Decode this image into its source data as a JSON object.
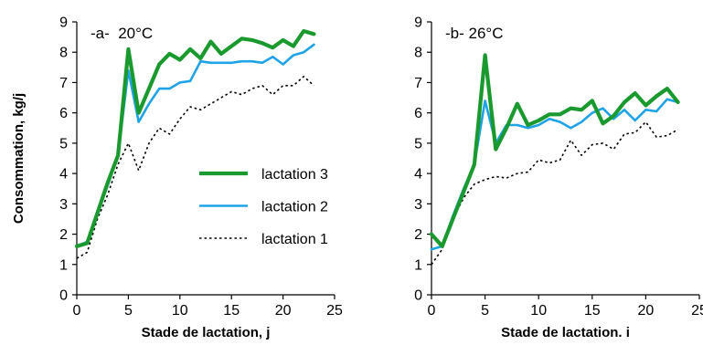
{
  "colors": {
    "lactation_3": "#1a9a2e",
    "lactation_2": "#1fa3e6",
    "lactation_1": "#000000",
    "axis": "#000000"
  },
  "chart_data": [
    {
      "type": "line",
      "panel_label": "-a-  20°C",
      "xlabel": "Stade de lactation, j",
      "ylabel": "Consommation, kg/j",
      "xlim": [
        0,
        25
      ],
      "ylim": [
        0,
        9
      ],
      "xticks": [
        0,
        5,
        10,
        15,
        20,
        25
      ],
      "yticks": [
        0,
        1,
        2,
        3,
        4,
        5,
        6,
        7,
        8,
        9
      ],
      "grid": false,
      "legend_position": "center-right",
      "series": [
        {
          "name": "lactation 3",
          "style": "solid-thick",
          "x": [
            0,
            1,
            2,
            3,
            4,
            5,
            6,
            7,
            8,
            9,
            10,
            11,
            12,
            13,
            14,
            15,
            16,
            17,
            18,
            19,
            20,
            21,
            22,
            23
          ],
          "y": [
            1.6,
            1.7,
            2.7,
            3.7,
            4.6,
            8.1,
            6.0,
            6.8,
            7.6,
            7.95,
            7.75,
            8.1,
            7.8,
            8.35,
            7.95,
            8.2,
            8.45,
            8.4,
            8.3,
            8.15,
            8.4,
            8.2,
            8.7,
            8.6
          ]
        },
        {
          "name": "lactation 2",
          "style": "solid",
          "x": [
            0,
            1,
            2,
            3,
            4,
            5,
            6,
            7,
            8,
            9,
            10,
            11,
            12,
            13,
            14,
            15,
            16,
            17,
            18,
            19,
            20,
            21,
            22,
            23
          ],
          "y": [
            1.6,
            1.75,
            2.7,
            3.6,
            4.6,
            7.4,
            5.7,
            6.3,
            6.8,
            6.8,
            7.0,
            7.05,
            7.7,
            7.65,
            7.65,
            7.65,
            7.7,
            7.7,
            7.65,
            7.85,
            7.6,
            7.9,
            8.0,
            8.25
          ]
        },
        {
          "name": "lactation 1",
          "style": "dotted",
          "x": [
            0,
            1,
            2,
            3,
            4,
            5,
            6,
            7,
            8,
            9,
            10,
            11,
            12,
            13,
            14,
            15,
            16,
            17,
            18,
            19,
            20,
            21,
            22,
            23
          ],
          "y": [
            1.2,
            1.4,
            2.5,
            3.3,
            4.3,
            5.0,
            4.1,
            5.0,
            5.5,
            5.3,
            5.8,
            6.2,
            6.1,
            6.3,
            6.5,
            6.7,
            6.6,
            6.8,
            6.9,
            6.6,
            6.9,
            6.9,
            7.2,
            6.9
          ]
        }
      ]
    },
    {
      "type": "line",
      "panel_label": "-b- 26°C",
      "xlabel": "Stade de lactation. i",
      "xlim": [
        0,
        25
      ],
      "ylim": [
        0,
        9
      ],
      "xticks": [
        0,
        5,
        10,
        15,
        20,
        25
      ],
      "yticks": [
        0,
        1,
        2,
        3,
        4,
        5,
        6,
        7,
        8,
        9
      ],
      "grid": false,
      "series": [
        {
          "name": "lactation 3",
          "style": "solid-thick",
          "x": [
            0,
            1,
            2,
            3,
            4,
            5,
            6,
            7,
            8,
            9,
            10,
            11,
            12,
            13,
            14,
            15,
            16,
            17,
            18,
            19,
            20,
            21,
            22,
            23
          ],
          "y": [
            2.0,
            1.6,
            2.5,
            3.4,
            4.3,
            7.9,
            4.8,
            5.5,
            6.3,
            5.6,
            5.75,
            5.95,
            5.95,
            6.15,
            6.1,
            6.4,
            5.65,
            5.9,
            6.35,
            6.65,
            6.25,
            6.55,
            6.8,
            6.35
          ]
        },
        {
          "name": "lactation 2",
          "style": "solid",
          "x": [
            0,
            1,
            2,
            3,
            4,
            5,
            6,
            7,
            8,
            9,
            10,
            11,
            12,
            13,
            14,
            15,
            16,
            17,
            18,
            19,
            20,
            21,
            22,
            23
          ],
          "y": [
            1.5,
            1.6,
            2.6,
            3.5,
            4.3,
            6.4,
            5.0,
            5.6,
            5.6,
            5.5,
            5.6,
            5.8,
            5.7,
            5.5,
            5.7,
            6.0,
            6.15,
            5.8,
            6.1,
            5.75,
            6.1,
            6.05,
            6.45,
            6.35
          ]
        },
        {
          "name": "lactation 1",
          "style": "dotted",
          "x": [
            0,
            1,
            2,
            3,
            4,
            5,
            6,
            7,
            8,
            9,
            10,
            11,
            12,
            13,
            14,
            15,
            16,
            17,
            18,
            19,
            20,
            21,
            22,
            23
          ],
          "y": [
            1.0,
            1.5,
            2.5,
            3.2,
            3.65,
            3.8,
            3.9,
            3.85,
            4.0,
            4.05,
            4.45,
            4.35,
            4.45,
            5.1,
            4.6,
            4.95,
            5.0,
            4.8,
            5.3,
            5.35,
            5.7,
            5.2,
            5.25,
            5.45
          ]
        }
      ]
    }
  ]
}
